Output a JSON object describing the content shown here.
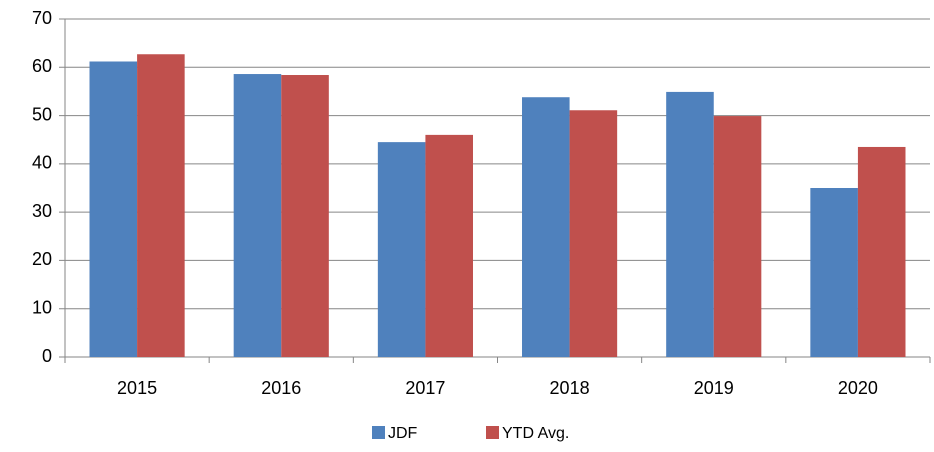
{
  "chart_data": {
    "type": "bar",
    "categories": [
      "2015",
      "2016",
      "2017",
      "2018",
      "2019",
      "2020"
    ],
    "series": [
      {
        "name": "JDF",
        "color": "#4f81bd",
        "values": [
          61.2,
          58.6,
          44.5,
          53.8,
          54.9,
          35.0
        ]
      },
      {
        "name": "YTD Avg.",
        "color": "#c0504d",
        "values": [
          62.7,
          58.4,
          46.0,
          51.1,
          49.9,
          43.5
        ]
      }
    ],
    "ylim": [
      0,
      70
    ],
    "yticks": [
      0,
      10,
      20,
      30,
      40,
      50,
      60,
      70
    ],
    "grid": true,
    "legend": "bottom"
  }
}
